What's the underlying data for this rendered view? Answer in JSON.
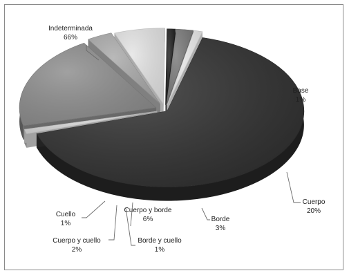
{
  "chart_data": {
    "type": "pie",
    "style": "3d-exploded",
    "title": "",
    "legend": "none",
    "slices": [
      {
        "name": "Indeterminada",
        "value": 66,
        "label": "66%",
        "color": "#2f2f2f"
      },
      {
        "name": "Base",
        "value": 1,
        "label": "1%",
        "color": "#d6d6d6"
      },
      {
        "name": "Cuerpo",
        "value": 20,
        "label": "20%",
        "color": "#8c8c8c"
      },
      {
        "name": "Borde",
        "value": 3,
        "label": "3%",
        "color": "#aaaaaa"
      },
      {
        "name": "Cuerpo y borde",
        "value": 6,
        "label": "6%",
        "color": "#e4e4e4"
      },
      {
        "name": "Borde y cuello",
        "value": 1,
        "label": "1%",
        "color": "#1f1f1f"
      },
      {
        "name": "Cuerpo y cuello",
        "value": 2,
        "label": "2%",
        "color": "#7a7a7a"
      },
      {
        "name": "Cuello",
        "value": 1,
        "label": "1%",
        "color": "#ebebeb"
      }
    ]
  }
}
